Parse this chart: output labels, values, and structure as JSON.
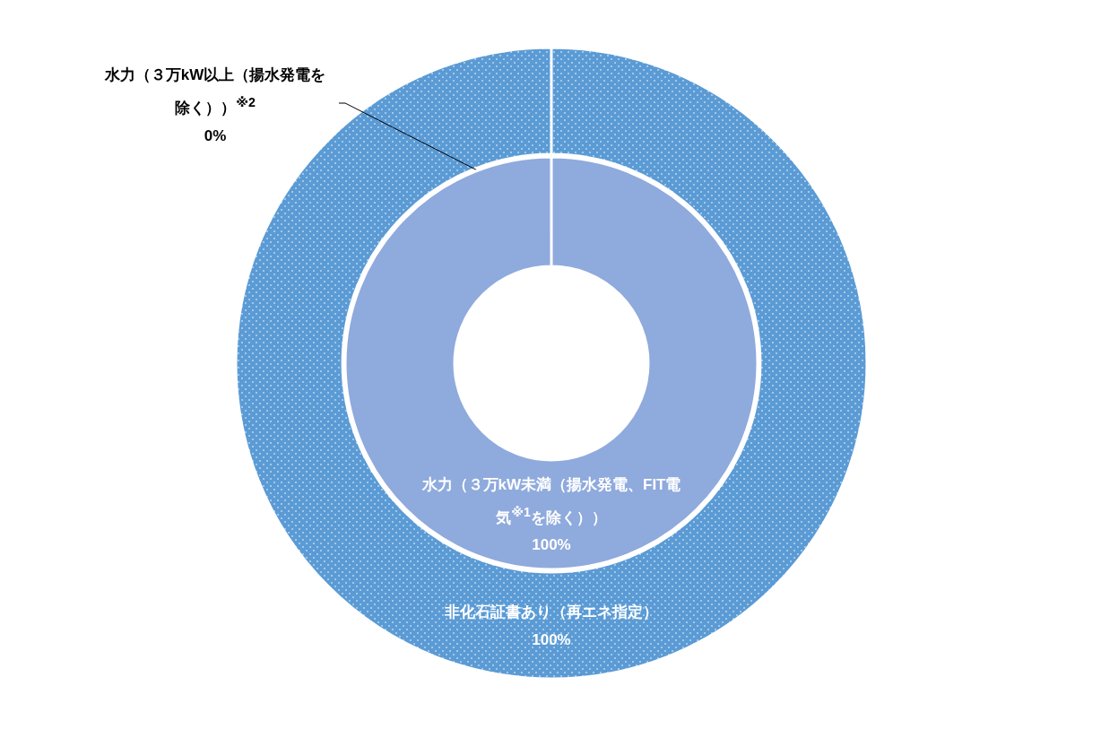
{
  "chart_data": [
    {
      "type": "pie",
      "categories": [
        "非化石証書あり（再エネ指定）"
      ],
      "values": [
        100
      ],
      "colors": [
        "#5b9bd5"
      ],
      "value_labels": [
        "100%"
      ]
    },
    {
      "type": "pie",
      "categories": [
        "水力（３万kW以上（揚水発電を除く））$^{※2}$",
        "水力（３万kW未満（揚水発電、FIT電気$^{※1}$を除く））"
      ],
      "values": [
        0,
        100
      ],
      "colors": [
        "#8faadc",
        "#8faadc"
      ],
      "value_labels": [
        "0%",
        "100%"
      ]
    }
  ]
}
